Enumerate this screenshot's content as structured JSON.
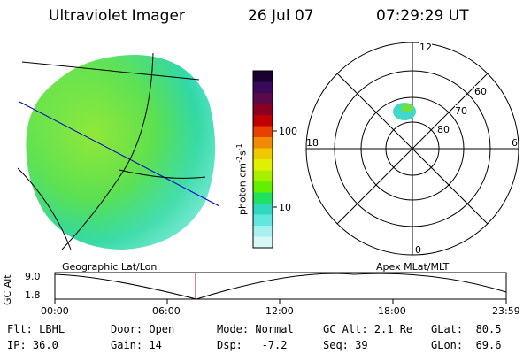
{
  "header": {
    "title": "Ultraviolet Imager",
    "date": "26 Jul 07",
    "time": "07:29:29 UT"
  },
  "colorbar": {
    "unit": "photon cm^-2 s^-1",
    "unit_main": "photon cm",
    "unit_sup1": "-2",
    "unit_s": "s",
    "unit_sup2": "-1",
    "ticks": [
      "100",
      "10"
    ],
    "colors": [
      "#1a0030",
      "#3a0a5a",
      "#5a0a4a",
      "#8a0020",
      "#c00000",
      "#e84000",
      "#f08a00",
      "#f0c800",
      "#e0f000",
      "#a8f000",
      "#60f000",
      "#20e060",
      "#30d8c0",
      "#60e8e0",
      "#a8f0f0",
      "#d8f8f8"
    ]
  },
  "polar": {
    "lat_labels": [
      "80",
      "70",
      "60"
    ],
    "mlt_labels": [
      "12",
      "18",
      "6",
      "0"
    ]
  },
  "timeline": {
    "left_title": "Geographic Lat/Lon",
    "right_title": "Apex MLat/MLT",
    "axis_label": "GC Alt",
    "y_top": "9.0",
    "y_bottom": "1.8",
    "x_ticks": [
      "00:00",
      "06:00",
      "12:00",
      "18:00",
      "23:59"
    ],
    "marker_time": "07:29"
  },
  "info": {
    "filter_label": "Flt:",
    "filter": "LBHL",
    "ip_label": "IP:",
    "ip": "36.0",
    "door_label": "Door:",
    "door": "Open",
    "gain_label": "Gain:",
    "gain": "14",
    "mode_label": "Mode:",
    "mode": "Normal",
    "dsp_label": "Dsp:",
    "dsp": "-7.2",
    "gcalt_label": "GC Alt:",
    "gcalt": "2.1 Re",
    "seq_label": "Seq:",
    "seq": "39",
    "glat_label": "GLat:",
    "glat": "80.5",
    "glon_label": "GLon:",
    "glon": "69.6"
  }
}
